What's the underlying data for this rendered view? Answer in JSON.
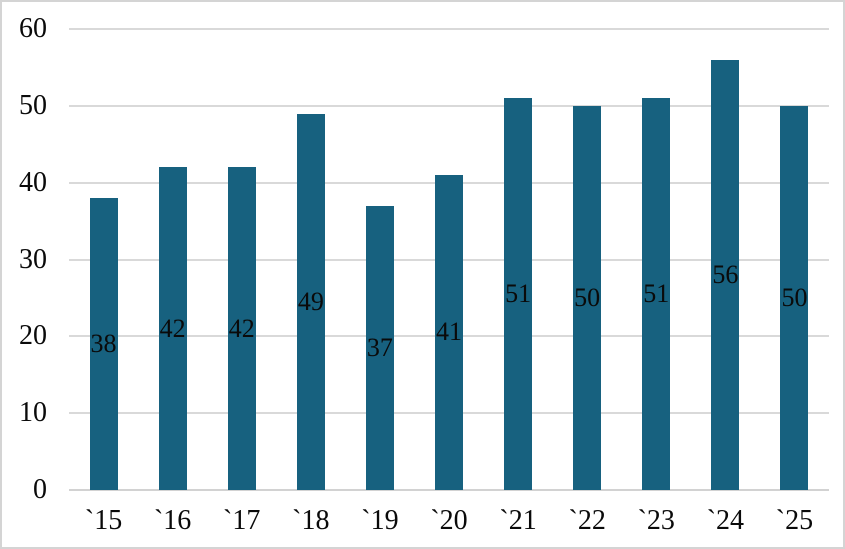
{
  "chart_data": {
    "type": "bar",
    "title": "",
    "xlabel": "",
    "ylabel": "",
    "categories": [
      "`15",
      "`16",
      "`17",
      "`18",
      "`19",
      "`20",
      "`21",
      "`22",
      "`23",
      "`24",
      "`25"
    ],
    "values": [
      38,
      42,
      42,
      49,
      37,
      41,
      51,
      50,
      51,
      56,
      50
    ],
    "ylim": [
      0,
      60
    ],
    "yticks": [
      0,
      10,
      20,
      30,
      40,
      50,
      60
    ],
    "grid": "horizontal",
    "legend": "none",
    "data_labels_position": "inside-center",
    "colors": {
      "bar": "#17617F",
      "gridline": "#D9D9D9",
      "axis_line": "#D2D2D2",
      "text": "#0A0A0A",
      "background": "#FFFFFF",
      "frame_border": "#D4D4D4"
    }
  }
}
